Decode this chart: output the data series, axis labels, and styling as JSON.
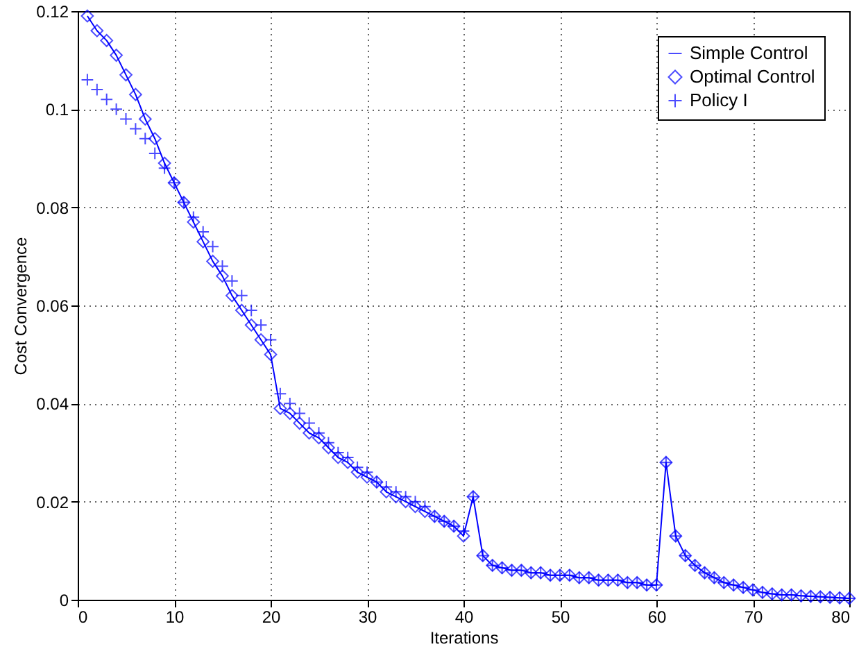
{
  "chart_data": {
    "type": "line",
    "xlabel": "Iterations",
    "ylabel": "Cost Convergence",
    "x": [
      1,
      2,
      3,
      4,
      5,
      6,
      7,
      8,
      9,
      10,
      11,
      12,
      13,
      14,
      15,
      16,
      17,
      18,
      19,
      20,
      21,
      22,
      23,
      24,
      25,
      26,
      27,
      28,
      29,
      30,
      31,
      32,
      33,
      34,
      35,
      36,
      37,
      38,
      39,
      40,
      41,
      42,
      43,
      44,
      45,
      46,
      47,
      48,
      49,
      50,
      51,
      52,
      53,
      54,
      55,
      56,
      57,
      58,
      59,
      60,
      61,
      62,
      63,
      64,
      65,
      66,
      67,
      68,
      69,
      70,
      71,
      72,
      73,
      74,
      75,
      76,
      77,
      78,
      79,
      80
    ],
    "series": [
      {
        "name": "Simple Control",
        "marker": "none",
        "line_style": "solid",
        "color": "#0000ff",
        "values": [
          0.119,
          0.116,
          0.114,
          0.111,
          0.107,
          0.103,
          0.098,
          0.094,
          0.089,
          0.085,
          0.081,
          0.077,
          0.073,
          0.069,
          0.066,
          0.062,
          0.059,
          0.056,
          0.053,
          0.05,
          0.039,
          0.038,
          0.036,
          0.034,
          0.033,
          0.031,
          0.029,
          0.028,
          0.026,
          0.025,
          0.024,
          0.022,
          0.021,
          0.02,
          0.019,
          0.018,
          0.017,
          0.016,
          0.015,
          0.013,
          0.021,
          0.009,
          0.007,
          0.0065,
          0.006,
          0.006,
          0.0055,
          0.0055,
          0.005,
          0.005,
          0.005,
          0.0045,
          0.0045,
          0.004,
          0.004,
          0.004,
          0.0035,
          0.0035,
          0.003,
          0.003,
          0.028,
          0.013,
          0.009,
          0.007,
          0.0055,
          0.0045,
          0.0035,
          0.003,
          0.0025,
          0.002,
          0.0015,
          0.0012,
          0.001,
          0.001,
          0.0008,
          0.0007,
          0.0006,
          0.0005,
          0.0004,
          0.0003
        ]
      },
      {
        "name": "Optimal Control",
        "type": "scatter",
        "marker": "diamond",
        "color": "#0000ff",
        "values": [
          0.119,
          0.116,
          0.114,
          0.111,
          0.107,
          0.103,
          0.098,
          0.094,
          0.089,
          0.085,
          0.081,
          0.077,
          0.073,
          0.069,
          0.066,
          0.062,
          0.059,
          0.056,
          0.053,
          0.05,
          0.039,
          0.038,
          0.036,
          0.034,
          0.033,
          0.031,
          0.029,
          0.028,
          0.026,
          0.025,
          0.024,
          0.022,
          0.021,
          0.02,
          0.019,
          0.018,
          0.017,
          0.016,
          0.015,
          0.013,
          0.021,
          0.009,
          0.007,
          0.0065,
          0.006,
          0.006,
          0.0055,
          0.0055,
          0.005,
          0.005,
          0.005,
          0.0045,
          0.0045,
          0.004,
          0.004,
          0.004,
          0.0035,
          0.0035,
          0.003,
          0.003,
          0.028,
          0.013,
          0.009,
          0.007,
          0.0055,
          0.0045,
          0.0035,
          0.003,
          0.0025,
          0.002,
          0.0015,
          0.0012,
          0.001,
          0.001,
          0.0008,
          0.0007,
          0.0006,
          0.0005,
          0.0004,
          0.0003
        ]
      },
      {
        "name": "Policy I",
        "type": "scatter",
        "marker": "cross",
        "color": "#0000ff",
        "values": [
          0.106,
          0.104,
          0.102,
          0.1,
          0.098,
          0.096,
          0.094,
          0.091,
          0.088,
          0.085,
          0.081,
          0.078,
          0.075,
          0.072,
          0.068,
          0.065,
          0.062,
          0.059,
          0.056,
          0.053,
          0.042,
          0.04,
          0.038,
          0.036,
          0.034,
          0.032,
          0.03,
          0.029,
          0.027,
          0.026,
          0.024,
          0.023,
          0.022,
          0.021,
          0.02,
          0.019,
          0.017,
          0.016,
          0.015,
          0.014,
          0.021,
          0.009,
          0.007,
          0.0065,
          0.006,
          0.006,
          0.0055,
          0.0055,
          0.005,
          0.005,
          0.005,
          0.0045,
          0.0045,
          0.004,
          0.004,
          0.004,
          0.0035,
          0.0035,
          0.003,
          0.003,
          0.028,
          0.013,
          0.009,
          0.007,
          0.0055,
          0.0045,
          0.0035,
          0.003,
          0.0025,
          0.002,
          0.0015,
          0.0012,
          0.001,
          0.001,
          0.0008,
          0.0007,
          0.0006,
          0.0005,
          0.0004,
          0.0003
        ]
      }
    ],
    "xlim": [
      0,
      80
    ],
    "xticks": [
      0,
      10,
      20,
      30,
      40,
      50,
      60,
      70,
      80
    ],
    "ylim": [
      0,
      0.12
    ],
    "yticks": [
      0,
      0.02,
      0.04,
      0.06,
      0.08,
      0.1,
      0.12
    ],
    "grid": true,
    "legend": "top right"
  }
}
